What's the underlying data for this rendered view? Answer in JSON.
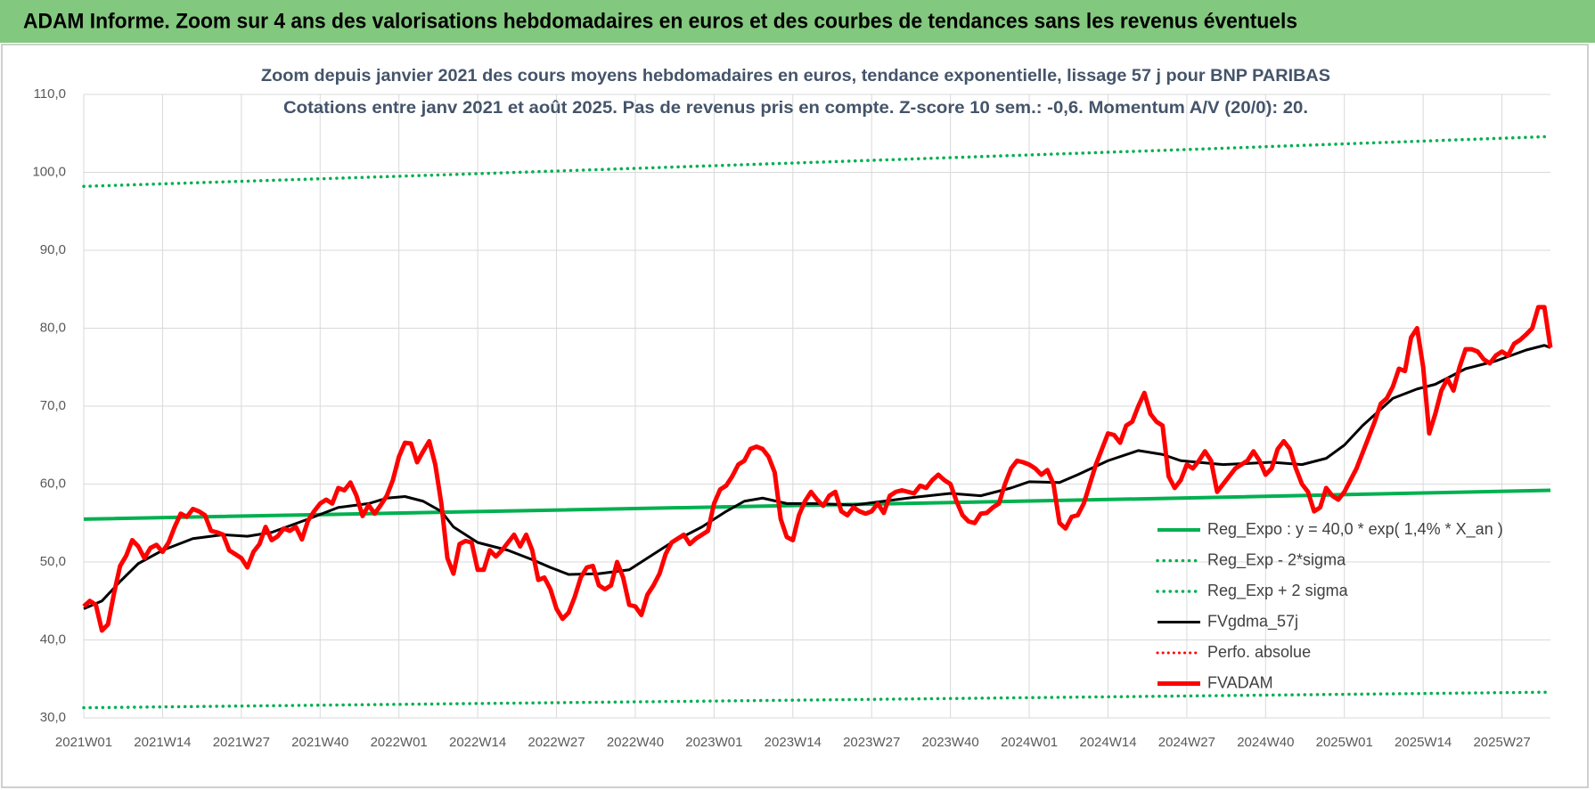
{
  "header": {
    "title": "ADAM Informe. Zoom sur 4 ans des valorisations hebdomadaires en euros et des courbes de tendances sans les revenus éventuels"
  },
  "chart_data": {
    "type": "line",
    "title": "Zoom depuis janvier 2021 des cours moyens hebdomadaires en euros, tendance exponentielle, lissage 57 j pour BNP PARIBAS",
    "subtitle": "Cotations entre janv 2021 et août 2025. Pas de revenus pris en compte. Z-score 10 sem.: -0,6. Momentum A/V (20/0): 20.",
    "xlim": [
      0,
      242
    ],
    "xticks": [
      {
        "value": 0,
        "label": "2021W01"
      },
      {
        "value": 13,
        "label": "2021W14"
      },
      {
        "value": 26,
        "label": "2021W27"
      },
      {
        "value": 39,
        "label": "2021W40"
      },
      {
        "value": 52,
        "label": "2022W01"
      },
      {
        "value": 65,
        "label": "2022W14"
      },
      {
        "value": 78,
        "label": "2022W27"
      },
      {
        "value": 91,
        "label": "2022W40"
      },
      {
        "value": 104,
        "label": "2023W01"
      },
      {
        "value": 117,
        "label": "2023W14"
      },
      {
        "value": 130,
        "label": "2023W27"
      },
      {
        "value": 143,
        "label": "2023W40"
      },
      {
        "value": 156,
        "label": "2024W01"
      },
      {
        "value": 169,
        "label": "2024W14"
      },
      {
        "value": 182,
        "label": "2024W27"
      },
      {
        "value": 195,
        "label": "2024W40"
      },
      {
        "value": 208,
        "label": "2025W01"
      },
      {
        "value": 221,
        "label": "2025W14"
      },
      {
        "value": 234,
        "label": "2025W27"
      }
    ],
    "ylim": [
      30,
      110
    ],
    "yticks": [
      {
        "value": 30,
        "label": "30,0"
      },
      {
        "value": 40,
        "label": "40,0"
      },
      {
        "value": 50,
        "label": "50,0"
      },
      {
        "value": 60,
        "label": "60,0"
      },
      {
        "value": 70,
        "label": "70,0"
      },
      {
        "value": 80,
        "label": "80,0"
      },
      {
        "value": 90,
        "label": "90,0"
      },
      {
        "value": 100,
        "label": "100,0"
      },
      {
        "value": 110,
        "label": "110,0"
      }
    ],
    "grid": true,
    "legend": "lower-right",
    "series": [
      {
        "name": "Reg_Expo : y = 40,0 * exp( 1,4% *  X_an )",
        "color": "#00b050",
        "line_style": "solid",
        "line_width": 4,
        "x": [
          0,
          60,
          121,
          181,
          242
        ],
        "values": [
          55.5,
          56.4,
          57.3,
          58.2,
          59.2
        ]
      },
      {
        "name": "Reg_Exp - 2*sigma",
        "color": "#00b050",
        "line_style": "dotted",
        "line_width": 3.5,
        "x": [
          0,
          60,
          121,
          181,
          242
        ],
        "values": [
          31.3,
          31.8,
          32.3,
          32.8,
          33.3
        ]
      },
      {
        "name": "Reg_Exp + 2 sigma",
        "color": "#00b050",
        "line_style": "dotted",
        "line_width": 3.5,
        "x": [
          0,
          60,
          121,
          181,
          242
        ],
        "values": [
          98.2,
          99.7,
          101.3,
          102.9,
          104.6
        ]
      },
      {
        "name": "FVgdma_57j",
        "color": "#000000",
        "line_style": "solid",
        "line_width": 3,
        "x": [
          0,
          3,
          6,
          9,
          13,
          18,
          23,
          27,
          31,
          37,
          42,
          47,
          50,
          53,
          56,
          59,
          61,
          65,
          70,
          74,
          77,
          80,
          85,
          90,
          94,
          97,
          102,
          106,
          109,
          112,
          116,
          121,
          127,
          132,
          137,
          143,
          148,
          153,
          156,
          161,
          164,
          169,
          174,
          178,
          181,
          188,
          196,
          201,
          205,
          208,
          211,
          216,
          220,
          223,
          228,
          233,
          238,
          241,
          242
        ],
        "values": [
          44,
          45,
          47.5,
          49.8,
          51.5,
          53,
          53.5,
          53.3,
          53.8,
          55.5,
          57,
          57.5,
          58.2,
          58.4,
          57.8,
          56.5,
          54.5,
          52.5,
          51.5,
          50.3,
          49.3,
          48.4,
          48.5,
          49,
          51,
          52.5,
          54.5,
          56.5,
          57.8,
          58.2,
          57.5,
          57.5,
          57.3,
          57.8,
          58.3,
          58.8,
          58.5,
          59.5,
          60.3,
          60.2,
          61.2,
          63,
          64.3,
          63.8,
          63,
          62.5,
          62.8,
          62.5,
          63.3,
          65,
          67.5,
          71,
          72.2,
          72.8,
          74.8,
          75.8,
          77.2,
          77.8,
          77.5
        ]
      },
      {
        "name": "Perfo. absolue",
        "color": "#ff0000",
        "line_style": "dotted",
        "line_width": 3,
        "x": [],
        "values": []
      },
      {
        "name": "FVADAM",
        "color": "#ff0000",
        "line_style": "solid",
        "line_width": 5,
        "x": [
          0,
          1,
          2,
          3,
          4,
          5,
          6,
          7,
          8,
          9,
          10,
          11,
          12,
          13,
          14,
          15,
          16,
          17,
          18,
          19,
          20,
          21,
          22,
          23,
          24,
          25,
          26,
          27,
          28,
          29,
          30,
          31,
          32,
          33,
          34,
          35,
          36,
          37,
          38,
          39,
          40,
          41,
          42,
          43,
          44,
          45,
          46,
          47,
          48,
          49,
          50,
          51,
          52,
          53,
          54,
          55,
          56,
          57,
          58,
          59,
          60,
          61,
          62,
          63,
          64,
          65,
          66,
          67,
          68,
          69,
          70,
          71,
          72,
          73,
          74,
          75,
          76,
          77,
          78,
          79,
          80,
          81,
          82,
          83,
          84,
          85,
          86,
          87,
          88,
          89,
          90,
          91,
          92,
          93,
          94,
          95,
          96,
          97,
          98,
          99,
          100,
          101,
          102,
          103,
          104,
          105,
          106,
          107,
          108,
          109,
          110,
          111,
          112,
          113,
          114,
          115,
          116,
          117,
          118,
          119,
          120,
          121,
          122,
          123,
          124,
          125,
          126,
          127,
          128,
          129,
          130,
          131,
          132,
          133,
          134,
          135,
          136,
          137,
          138,
          139,
          140,
          141,
          142,
          143,
          144,
          145,
          146,
          147,
          148,
          149,
          150,
          151,
          152,
          153,
          154,
          155,
          156,
          157,
          158,
          159,
          160,
          161,
          162,
          163,
          164,
          165,
          166,
          167,
          168,
          169,
          170,
          171,
          172,
          173,
          174,
          175,
          176,
          177,
          178,
          179,
          180,
          181,
          182,
          183,
          184,
          185,
          186,
          187,
          188,
          189,
          190,
          191,
          192,
          193,
          194,
          195,
          196,
          197,
          198,
          199,
          200,
          201,
          202,
          203,
          204,
          205,
          206,
          207,
          208,
          209,
          210,
          211,
          212,
          213,
          214,
          215,
          216,
          217,
          218,
          219,
          220,
          221,
          222,
          223,
          224,
          225,
          226,
          227,
          228,
          229,
          230,
          231,
          232,
          233,
          234,
          235,
          236,
          237,
          238,
          239,
          240,
          241,
          242
        ],
        "values": [
          44.3,
          45,
          44.5,
          41.2,
          42,
          46,
          49.5,
          50.8,
          52.8,
          52,
          50.5,
          51.8,
          52.2,
          51.3,
          52.5,
          54.5,
          56.2,
          55.8,
          56.8,
          56.5,
          56,
          54,
          53.8,
          53.5,
          51.5,
          51,
          50.5,
          49.3,
          51.3,
          52.3,
          54.5,
          52.8,
          53.3,
          54.3,
          54,
          54.5,
          52.9,
          55.3,
          56.5,
          57.5,
          58,
          57.5,
          59.5,
          59.2,
          60.2,
          58.5,
          55.9,
          57.3,
          56.2,
          57.3,
          58.5,
          60.5,
          63.5,
          65.3,
          65.2,
          62.8,
          64.2,
          65.5,
          62.5,
          57.5,
          50.5,
          48.5,
          52.3,
          52.7,
          52.5,
          49,
          49,
          51.5,
          50.7,
          51.5,
          52.5,
          53.5,
          52,
          53.5,
          51.5,
          47.7,
          48,
          46.5,
          44,
          42.7,
          43.5,
          45.5,
          48,
          49.3,
          49.5,
          47,
          46.5,
          47,
          50,
          48,
          44.5,
          44.3,
          43.2,
          45.8,
          47,
          48.5,
          51,
          52.5,
          53,
          53.5,
          52.3,
          53,
          53.5,
          54,
          57.5,
          59.3,
          59.8,
          61,
          62.5,
          63,
          64.5,
          64.8,
          64.5,
          63.5,
          61.5,
          55.5,
          53.2,
          52.8,
          56,
          57.8,
          59,
          58,
          57.2,
          58.5,
          59,
          56.5,
          56,
          57,
          56.5,
          56.2,
          56.5,
          57.5,
          56.3,
          58.5,
          59,
          59.2,
          59,
          58.8,
          59.8,
          59.5,
          60.5,
          61.2,
          60.5,
          60,
          57.8,
          56,
          55.2,
          55,
          56.2,
          56.3,
          57,
          57.5,
          60,
          62,
          63,
          62.8,
          62.5,
          62,
          61.2,
          61.8,
          60,
          55,
          54.3,
          55.8,
          56,
          57.5,
          60,
          62.5,
          64.5,
          66.5,
          66.3,
          65.3,
          67.5,
          68,
          70,
          71.7,
          69,
          68,
          67.5,
          61,
          59.5,
          60.5,
          62.5,
          62,
          63,
          64.2,
          63,
          59,
          60,
          61,
          62,
          62.5,
          63,
          64.2,
          63,
          61.2,
          62,
          64.5,
          65.5,
          64.5,
          62,
          60,
          59,
          56.5,
          57,
          59.5,
          58.5,
          58,
          59,
          60.5,
          62,
          64,
          66,
          68,
          70.3,
          71,
          72.5,
          74.8,
          74.5,
          78.8,
          80,
          75,
          66.5,
          69,
          72,
          73.5,
          72,
          75,
          77.3,
          77.3,
          77,
          76,
          75.5,
          76.5,
          77,
          76.5,
          78,
          78.5,
          79.2,
          80,
          82.7,
          82.7,
          77.5
        ]
      }
    ]
  }
}
